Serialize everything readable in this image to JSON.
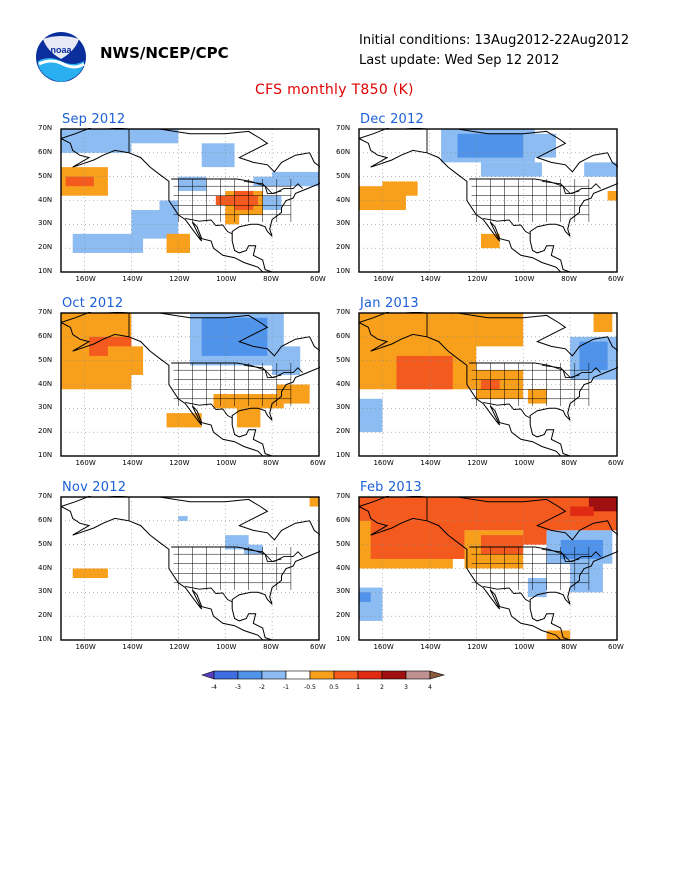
{
  "header": {
    "logo_text": "noaa",
    "org": "NWS/NCEP/CPC",
    "initial_conditions": "Initial conditions: 13Aug2012-22Aug2012",
    "last_update": "Last update: Wed Sep 12 2012"
  },
  "title": "CFS monthly T850 (K)",
  "axes": {
    "lat_labels": [
      "70N",
      "60N",
      "50N",
      "40N",
      "30N",
      "20N",
      "10N"
    ],
    "lon_labels": [
      "160W",
      "140W",
      "120W",
      "100W",
      "80W",
      "60W"
    ]
  },
  "colors": {
    "cold_strong": "#5a3fc0",
    "cold": "#3f6ee0",
    "cool": "#4f93ea",
    "cool_light": "#8dbcf2",
    "warm_light": "#f8a01c",
    "warm": "#f45a1e",
    "warm_strong": "#e02a14",
    "hot": "#a01010",
    "hot_2": "#c09090",
    "hot_3": "#8c5a3c",
    "title_blue": "#1c5fd8",
    "title_red": "#e00000"
  },
  "panels": [
    {
      "id": "sep-2012",
      "title": "Sep 2012"
    },
    {
      "id": "oct-2012",
      "title": "Oct 2012"
    },
    {
      "id": "nov-2012",
      "title": "Nov 2012"
    },
    {
      "id": "dec-2012",
      "title": "Dec 2012"
    },
    {
      "id": "jan-2013",
      "title": "Jan 2013"
    },
    {
      "id": "feb-2013",
      "title": "Feb 2013"
    }
  ],
  "colorbar": {
    "labels": [
      "-4",
      "-3",
      "-2",
      "-1",
      "-0.5",
      "0.5",
      "1",
      "2",
      "3",
      "4"
    ]
  }
}
